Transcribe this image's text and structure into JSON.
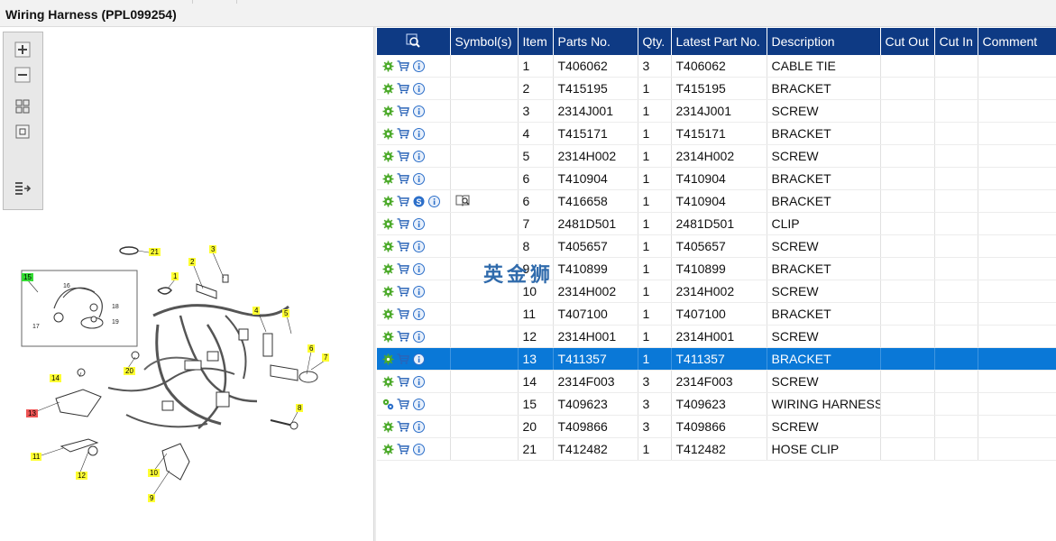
{
  "window": {
    "title": "Wiring Harness (PPL099254)"
  },
  "toolbar": {
    "buttons": [
      {
        "name": "zoom-in-icon"
      },
      {
        "name": "zoom-out-icon"
      },
      {
        "name": "fit-grid-icon"
      },
      {
        "name": "fit-page-icon"
      },
      {
        "name": "export-list-icon"
      }
    ]
  },
  "diagram": {
    "callouts": [
      "21",
      "3",
      "2",
      "1",
      "15",
      "4",
      "5",
      "6",
      "7",
      "14",
      "20",
      "13",
      "8",
      "11",
      "12",
      "10",
      "9"
    ],
    "inset_labels": [
      "16",
      "18",
      "17",
      "19"
    ]
  },
  "table": {
    "columns": [
      "",
      "Symbol(s)",
      "Item",
      "Parts No.",
      "Qty.",
      "Latest Part No.",
      "Description",
      "Cut Out",
      "Cut In",
      "Comment"
    ],
    "rows": [
      {
        "icons": [
          "gear-icon",
          "cart-icon",
          "info-icon"
        ],
        "symbol": "",
        "item": "1",
        "part": "T406062",
        "qty": "3",
        "latest": "T406062",
        "desc": "CABLE TIE"
      },
      {
        "icons": [
          "gear-icon",
          "cart-icon",
          "info-icon"
        ],
        "symbol": "",
        "item": "2",
        "part": "T415195",
        "qty": "1",
        "latest": "T415195",
        "desc": "BRACKET"
      },
      {
        "icons": [
          "gear-icon",
          "cart-icon",
          "info-icon"
        ],
        "symbol": "",
        "item": "3",
        "part": "2314J001",
        "qty": "1",
        "latest": "2314J001",
        "desc": "SCREW"
      },
      {
        "icons": [
          "gear-icon",
          "cart-icon",
          "info-icon"
        ],
        "symbol": "",
        "item": "4",
        "part": "T415171",
        "qty": "1",
        "latest": "T415171",
        "desc": "BRACKET"
      },
      {
        "icons": [
          "gear-icon",
          "cart-icon",
          "info-icon"
        ],
        "symbol": "",
        "item": "5",
        "part": "2314H002",
        "qty": "1",
        "latest": "2314H002",
        "desc": "SCREW"
      },
      {
        "icons": [
          "gear-icon",
          "cart-icon",
          "info-icon"
        ],
        "symbol": "",
        "item": "6",
        "part": "T410904",
        "qty": "1",
        "latest": "T410904",
        "desc": "BRACKET"
      },
      {
        "icons": [
          "gear-icon",
          "cart-icon",
          "supersede-icon",
          "info-icon"
        ],
        "symbol": "book-icon",
        "item": "6",
        "part": "T416658",
        "qty": "1",
        "latest": "T410904",
        "desc": "BRACKET"
      },
      {
        "icons": [
          "gear-icon",
          "cart-icon",
          "info-icon"
        ],
        "symbol": "",
        "item": "7",
        "part": "2481D501",
        "qty": "1",
        "latest": "2481D501",
        "desc": "CLIP"
      },
      {
        "icons": [
          "gear-icon",
          "cart-icon",
          "info-icon"
        ],
        "symbol": "",
        "item": "8",
        "part": "T405657",
        "qty": "1",
        "latest": "T405657",
        "desc": "SCREW"
      },
      {
        "icons": [
          "gear-icon",
          "cart-icon",
          "info-icon"
        ],
        "symbol": "",
        "item": "9",
        "part": "T410899",
        "qty": "1",
        "latest": "T410899",
        "desc": "BRACKET"
      },
      {
        "icons": [
          "gear-icon",
          "cart-icon",
          "info-icon"
        ],
        "symbol": "",
        "item": "10",
        "part": "2314H002",
        "qty": "1",
        "latest": "2314H002",
        "desc": "SCREW"
      },
      {
        "icons": [
          "gear-icon",
          "cart-icon",
          "info-icon"
        ],
        "symbol": "",
        "item": "11",
        "part": "T407100",
        "qty": "1",
        "latest": "T407100",
        "desc": "BRACKET"
      },
      {
        "icons": [
          "gear-icon",
          "cart-icon",
          "info-icon"
        ],
        "symbol": "",
        "item": "12",
        "part": "2314H001",
        "qty": "1",
        "latest": "2314H001",
        "desc": "SCREW"
      },
      {
        "icons": [
          "gear-icon",
          "cart-icon",
          "info-icon"
        ],
        "symbol": "",
        "item": "13",
        "part": "T411357",
        "qty": "1",
        "latest": "T411357",
        "desc": "BRACKET",
        "selected": true
      },
      {
        "icons": [
          "gear-icon",
          "cart-icon",
          "info-icon"
        ],
        "symbol": "",
        "item": "14",
        "part": "2314F003",
        "qty": "3",
        "latest": "2314F003",
        "desc": "SCREW"
      },
      {
        "icons": [
          "assembly-gear-icon",
          "cart-icon",
          "info-icon"
        ],
        "symbol": "",
        "item": "15",
        "part": "T409623",
        "qty": "3",
        "latest": "T409623",
        "desc": "WIRING HARNESS"
      },
      {
        "icons": [
          "gear-icon",
          "cart-icon",
          "info-icon"
        ],
        "symbol": "",
        "item": "20",
        "part": "T409866",
        "qty": "3",
        "latest": "T409866",
        "desc": "SCREW"
      },
      {
        "icons": [
          "gear-icon",
          "cart-icon",
          "info-icon"
        ],
        "symbol": "",
        "item": "21",
        "part": "T412482",
        "qty": "1",
        "latest": "T412482",
        "desc": "HOSE CLIP"
      }
    ]
  },
  "watermark": "英金狮",
  "colors": {
    "header_bg": "#0e3a84",
    "selected_row": "#0a78d7",
    "callout": "#ffff33",
    "callout_assembly": "#33dd33",
    "callout_selected": "#ee5555",
    "gear": "#4caa2a",
    "info": "#2c6fc9"
  }
}
